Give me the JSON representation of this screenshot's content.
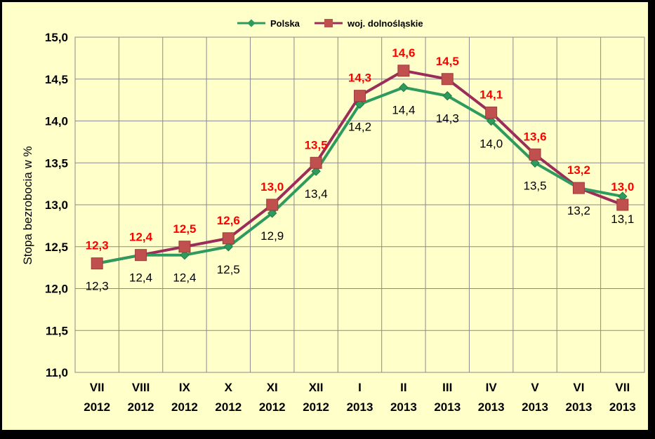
{
  "chart_data": {
    "type": "line",
    "categories": [
      [
        "VII",
        "2012"
      ],
      [
        "VIII",
        "2012"
      ],
      [
        "IX",
        "2012"
      ],
      [
        "X",
        "2012"
      ],
      [
        "XI",
        "2012"
      ],
      [
        "XII",
        "2012"
      ],
      [
        "I",
        "2013"
      ],
      [
        "II",
        "2013"
      ],
      [
        "III",
        "2013"
      ],
      [
        "IV",
        "2013"
      ],
      [
        "V",
        "2013"
      ],
      [
        "VI",
        "2013"
      ],
      [
        "VII",
        "2013"
      ]
    ],
    "series": [
      {
        "name": "Polska",
        "color": "#2e9b5e",
        "marker": "diamond",
        "values": [
          12.3,
          12.4,
          12.4,
          12.5,
          12.9,
          13.4,
          14.2,
          14.4,
          14.3,
          14.0,
          13.5,
          13.2,
          13.1
        ],
        "labels": [
          "12,3",
          "12,4",
          "12,4",
          "12,5",
          "12,9",
          "13,4",
          "14,2",
          "14,4",
          "14,3",
          "14,0",
          "13,5",
          "13,2",
          "13,1"
        ]
      },
      {
        "name": "woj. dolnośląskie",
        "color": "#9b2d5a",
        "marker": "square",
        "marker_color": "#c0504d",
        "label_color": "#ff0000",
        "values": [
          12.3,
          12.4,
          12.5,
          12.6,
          13.0,
          13.5,
          14.3,
          14.6,
          14.5,
          14.1,
          13.6,
          13.2,
          13.0
        ],
        "labels": [
          "12,3",
          "12,4",
          "12,5",
          "12,6",
          "13,0",
          "13,5",
          "14,3",
          "14,6",
          "14,5",
          "14,1",
          "13,6",
          "13,2",
          "13,0"
        ]
      }
    ],
    "ylabel": "Stopa bezrobocia w %",
    "ylim": [
      11.0,
      15.0
    ],
    "yticks": [
      11.0,
      11.5,
      12.0,
      12.5,
      13.0,
      13.5,
      14.0,
      14.5,
      15.0
    ],
    "ytick_labels": [
      "11,0",
      "11,5",
      "12,0",
      "12,5",
      "13,0",
      "13,5",
      "14,0",
      "14,5",
      "15,0"
    ],
    "grid": true,
    "legend": "top-center",
    "background": "#ffffc9",
    "grid_color": "#8a8a8a"
  }
}
